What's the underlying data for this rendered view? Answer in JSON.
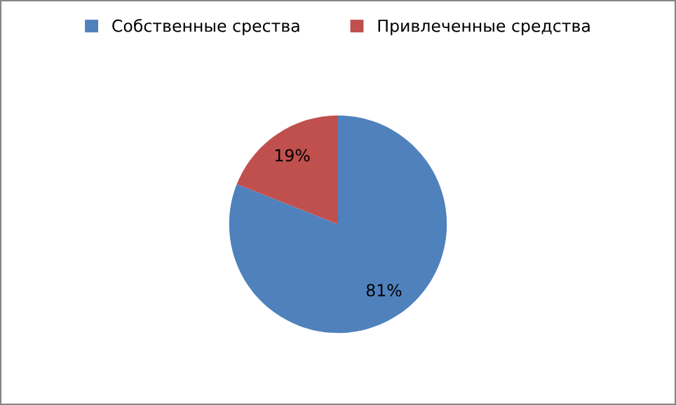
{
  "chart_data": {
    "type": "pie",
    "categories": [
      "Собственные срества",
      "Привлеченные средства"
    ],
    "values": [
      81,
      19
    ],
    "colors": [
      "#4f81bd",
      "#c0504d"
    ],
    "value_labels": [
      "81%",
      "19%"
    ],
    "legend": "top"
  }
}
